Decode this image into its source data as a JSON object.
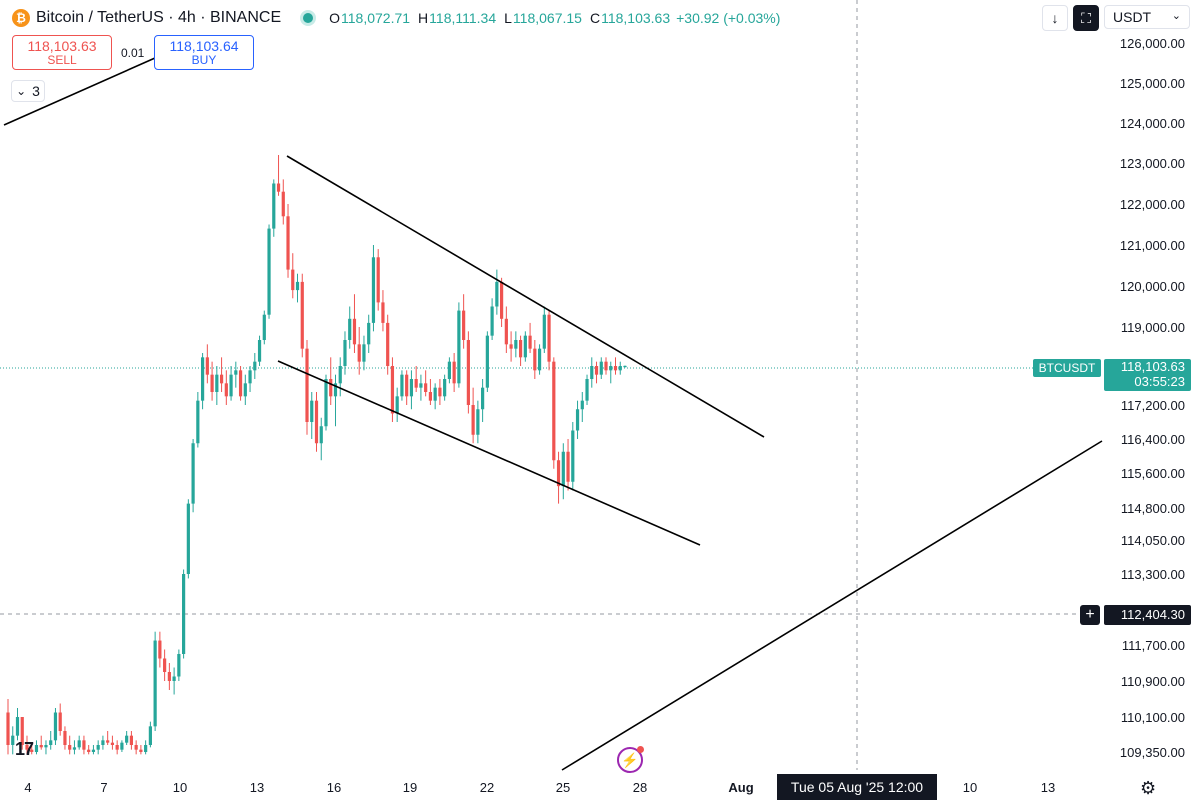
{
  "header": {
    "symbol_title": "Bitcoin / TetherUS · 4h · BINANCE",
    "coin_glyph": "₿",
    "open_label": "O",
    "open": "118,072.71",
    "high_label": "H",
    "high": "118,111.34",
    "low_label": "L",
    "low": "118,067.15",
    "close_label": "C",
    "close": "118,103.63",
    "change": "+30.92 (+0.03%)"
  },
  "trade": {
    "sell_price": "118,103.63",
    "sell_label": "SELL",
    "spread": "0.01",
    "buy_price": "118,103.64",
    "buy_label": "BUY"
  },
  "indicators": {
    "chevron": "⌄",
    "count": "3"
  },
  "toolbar": {
    "download_icon": "↓",
    "fullscreen_icon": "⛶",
    "currency": "USDT",
    "currency_chevron": "⌄"
  },
  "price_tag": {
    "symbol": "BTCUSDT",
    "price": "118,103.63",
    "countdown": "03:55:23"
  },
  "crosshair": {
    "price": "112,404.30",
    "date": "Tue 05 Aug '25   12:00",
    "plus": "+"
  },
  "colors": {
    "up": "#26a69a",
    "down": "#ef5350",
    "line": "#000000",
    "grid_text": "#131722"
  },
  "chart_data": {
    "type": "candlestick",
    "y_axis_ticks": [
      "126,000.00",
      "125,000.00",
      "124,000.00",
      "123,000.00",
      "122,000.00",
      "121,000.00",
      "120,000.00",
      "119,000.00",
      "117,200.00",
      "116,400.00",
      "115,600.00",
      "114,800.00",
      "114,050.00",
      "113,300.00",
      "111,700.00",
      "110,900.00",
      "110,100.00",
      "109,350.00"
    ],
    "x_axis_ticks": [
      "4",
      "7",
      "10",
      "13",
      "16",
      "19",
      "22",
      "25",
      "28",
      "Aug",
      "10",
      "13"
    ],
    "current_price": 118103.63,
    "crosshair_price": 112404.3,
    "ohlc": [
      [
        110200,
        110500,
        109300,
        109500
      ],
      [
        109500,
        109900,
        109300,
        109700
      ],
      [
        109700,
        110300,
        109600,
        110100
      ],
      [
        110100,
        110100,
        109400,
        109500
      ],
      [
        109500,
        109700,
        109300,
        109400
      ],
      [
        109400,
        109500,
        109300,
        109350
      ],
      [
        109350,
        109600,
        109300,
        109500
      ],
      [
        109500,
        109700,
        109400,
        109450
      ],
      [
        109450,
        109600,
        109300,
        109500
      ],
      [
        109500,
        109800,
        109400,
        109600
      ],
      [
        109600,
        110300,
        109500,
        110200
      ],
      [
        110200,
        110400,
        109700,
        109800
      ],
      [
        109800,
        109900,
        109400,
        109500
      ],
      [
        109500,
        109700,
        109300,
        109400
      ],
      [
        109400,
        109600,
        109300,
        109450
      ],
      [
        109450,
        109700,
        109400,
        109600
      ],
      [
        109600,
        109700,
        109300,
        109400
      ],
      [
        109400,
        109500,
        109300,
        109350
      ],
      [
        109350,
        109500,
        109300,
        109400
      ],
      [
        109400,
        109600,
        109300,
        109500
      ],
      [
        109500,
        109700,
        109400,
        109600
      ],
      [
        109600,
        109800,
        109500,
        109550
      ],
      [
        109550,
        109700,
        109400,
        109500
      ],
      [
        109500,
        109600,
        109300,
        109400
      ],
      [
        109400,
        109600,
        109350,
        109550
      ],
      [
        109550,
        109800,
        109500,
        109700
      ],
      [
        109700,
        109800,
        109400,
        109500
      ],
      [
        109500,
        109600,
        109300,
        109400
      ],
      [
        109400,
        109500,
        109300,
        109350
      ],
      [
        109350,
        109600,
        109300,
        109500
      ],
      [
        109500,
        110000,
        109450,
        109900
      ],
      [
        109900,
        112000,
        109800,
        111800
      ],
      [
        111800,
        112000,
        111200,
        111400
      ],
      [
        111400,
        111600,
        110900,
        111100
      ],
      [
        111100,
        111300,
        110700,
        110900
      ],
      [
        110900,
        111200,
        110600,
        111000
      ],
      [
        111000,
        111600,
        110900,
        111500
      ],
      [
        111500,
        113400,
        111400,
        113300
      ],
      [
        113300,
        115000,
        113200,
        114900
      ],
      [
        114900,
        116400,
        114700,
        116300
      ],
      [
        116300,
        117500,
        116200,
        117300
      ],
      [
        117300,
        118400,
        117100,
        118300
      ],
      [
        118300,
        118600,
        117700,
        117900
      ],
      [
        117900,
        118200,
        117300,
        117500
      ],
      [
        117500,
        118100,
        117200,
        117900
      ],
      [
        117900,
        118300,
        117500,
        117700
      ],
      [
        117700,
        118000,
        117200,
        117400
      ],
      [
        117400,
        118100,
        117300,
        117900
      ],
      [
        117900,
        118200,
        117600,
        118000
      ],
      [
        118000,
        118100,
        117300,
        117400
      ],
      [
        117400,
        117900,
        117200,
        117700
      ],
      [
        117700,
        118100,
        117500,
        118000
      ],
      [
        118000,
        118400,
        117800,
        118200
      ],
      [
        118200,
        118800,
        118100,
        118700
      ],
      [
        118700,
        119400,
        118600,
        119300
      ],
      [
        119300,
        121500,
        119200,
        121400
      ],
      [
        121400,
        122600,
        121200,
        122500
      ],
      [
        122500,
        123200,
        122200,
        122300
      ],
      [
        122300,
        122600,
        121500,
        121700
      ],
      [
        121700,
        122000,
        120200,
        120400
      ],
      [
        120400,
        120800,
        119700,
        119900
      ],
      [
        119900,
        120300,
        119600,
        120100
      ],
      [
        120100,
        120300,
        118300,
        118500
      ],
      [
        118500,
        118700,
        116500,
        116800
      ],
      [
        116800,
        117500,
        116400,
        117300
      ],
      [
        117300,
        117500,
        116100,
        116300
      ],
      [
        116300,
        116900,
        115900,
        116700
      ],
      [
        116700,
        117900,
        116600,
        117800
      ],
      [
        117800,
        118300,
        117200,
        117400
      ],
      [
        117400,
        117900,
        116700,
        117700
      ],
      [
        117700,
        118300,
        117400,
        118100
      ],
      [
        118100,
        118900,
        117900,
        118700
      ],
      [
        118700,
        119500,
        118500,
        119200
      ],
      [
        119200,
        119800,
        118400,
        118600
      ],
      [
        118600,
        119000,
        117900,
        118200
      ],
      [
        118200,
        118800,
        118000,
        118600
      ],
      [
        118600,
        119300,
        118400,
        119100
      ],
      [
        119100,
        121000,
        118900,
        120700
      ],
      [
        120700,
        120900,
        119400,
        119600
      ],
      [
        119600,
        119900,
        118900,
        119100
      ],
      [
        119100,
        119300,
        117900,
        118100
      ],
      [
        118100,
        118300,
        116800,
        117000
      ],
      [
        117000,
        117600,
        116800,
        117400
      ],
      [
        117400,
        118000,
        117300,
        117900
      ],
      [
        117900,
        118000,
        117200,
        117400
      ],
      [
        117400,
        118000,
        117100,
        117800
      ],
      [
        117800,
        118100,
        117500,
        117600
      ],
      [
        117600,
        117900,
        117300,
        117700
      ],
      [
        117700,
        118000,
        117400,
        117500
      ],
      [
        117500,
        117800,
        117200,
        117300
      ],
      [
        117300,
        117700,
        117100,
        117600
      ],
      [
        117600,
        117800,
        117200,
        117400
      ],
      [
        117400,
        117900,
        117300,
        117800
      ],
      [
        117800,
        118300,
        117700,
        118200
      ],
      [
        118200,
        118400,
        117500,
        117700
      ],
      [
        117700,
        119600,
        117600,
        119400
      ],
      [
        119400,
        119800,
        118500,
        118700
      ],
      [
        118700,
        118900,
        117000,
        117200
      ],
      [
        117200,
        117600,
        116300,
        116500
      ],
      [
        116500,
        117300,
        116300,
        117100
      ],
      [
        117100,
        117800,
        116800,
        117600
      ],
      [
        117600,
        118900,
        117500,
        118800
      ],
      [
        118800,
        119700,
        118700,
        119500
      ],
      [
        119500,
        120400,
        119300,
        120100
      ],
      [
        120100,
        120200,
        119000,
        119200
      ],
      [
        119200,
        119500,
        118400,
        118600
      ],
      [
        118600,
        118900,
        118200,
        118500
      ],
      [
        118500,
        118900,
        118300,
        118700
      ],
      [
        118700,
        118800,
        118100,
        118300
      ],
      [
        118300,
        118900,
        118200,
        118800
      ],
      [
        118800,
        119100,
        118400,
        118500
      ],
      [
        118500,
        118700,
        117800,
        118000
      ],
      [
        118000,
        118600,
        117900,
        118500
      ],
      [
        118500,
        119500,
        118400,
        119300
      ],
      [
        119300,
        119400,
        118000,
        118200
      ],
      [
        118200,
        118300,
        115700,
        115900
      ],
      [
        115900,
        116100,
        114900,
        115300
      ],
      [
        115300,
        116300,
        115000,
        116100
      ],
      [
        116100,
        116400,
        115200,
        115400
      ],
      [
        115400,
        116800,
        115200,
        116600
      ],
      [
        116600,
        117300,
        116400,
        117100
      ],
      [
        117100,
        117500,
        116800,
        117300
      ],
      [
        117300,
        117900,
        117200,
        117800
      ],
      [
        117800,
        118300,
        117600,
        118100
      ],
      [
        118100,
        118200,
        117700,
        117900
      ],
      [
        117900,
        118300,
        117800,
        118200
      ],
      [
        118200,
        118300,
        117900,
        118000
      ],
      [
        118000,
        118200,
        117700,
        118100
      ],
      [
        118100,
        118300,
        117900,
        118000
      ],
      [
        118000,
        118200,
        117900,
        118100
      ],
      [
        118072.71,
        118111.34,
        118067.15,
        118103.63
      ]
    ]
  }
}
